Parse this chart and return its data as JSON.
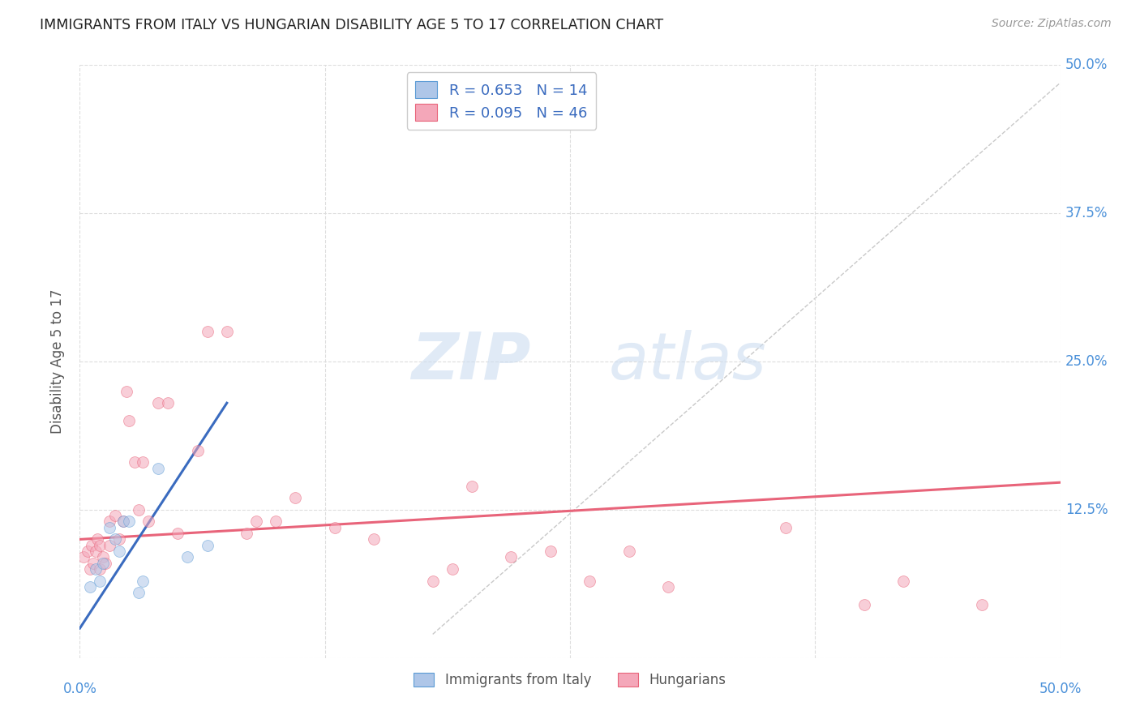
{
  "title": "IMMIGRANTS FROM ITALY VS HUNGARIAN DISABILITY AGE 5 TO 17 CORRELATION CHART",
  "source": "Source: ZipAtlas.com",
  "ylabel": "Disability Age 5 to 17",
  "xlim": [
    0.0,
    0.5
  ],
  "ylim": [
    0.0,
    0.5
  ],
  "xtick_vals": [
    0.0,
    0.125,
    0.25,
    0.375,
    0.5
  ],
  "xtick_labels": [
    "0.0%",
    "",
    "",
    "",
    "50.0%"
  ],
  "ytick_vals": [
    0.0,
    0.125,
    0.25,
    0.375,
    0.5
  ],
  "ytick_labels_right": [
    "",
    "12.5%",
    "25.0%",
    "37.5%",
    "50.0%"
  ],
  "legend_entries": [
    {
      "label": "Immigrants from Italy",
      "color": "#aec6e8",
      "edge": "#5b9bd5",
      "R": "0.653",
      "N": "14"
    },
    {
      "label": "Hungarians",
      "color": "#f4a7b9",
      "edge": "#e8647a",
      "R": "0.095",
      "N": "46"
    }
  ],
  "blue_scatter_x": [
    0.005,
    0.008,
    0.01,
    0.012,
    0.015,
    0.018,
    0.02,
    0.022,
    0.025,
    0.03,
    0.032,
    0.04,
    0.055,
    0.065
  ],
  "blue_scatter_y": [
    0.06,
    0.075,
    0.065,
    0.08,
    0.11,
    0.1,
    0.09,
    0.115,
    0.115,
    0.055,
    0.065,
    0.16,
    0.085,
    0.095
  ],
  "pink_scatter_x": [
    0.002,
    0.004,
    0.005,
    0.006,
    0.007,
    0.008,
    0.009,
    0.01,
    0.01,
    0.012,
    0.013,
    0.015,
    0.015,
    0.018,
    0.02,
    0.022,
    0.024,
    0.025,
    0.028,
    0.03,
    0.032,
    0.035,
    0.04,
    0.045,
    0.05,
    0.06,
    0.065,
    0.075,
    0.085,
    0.09,
    0.1,
    0.11,
    0.13,
    0.15,
    0.18,
    0.19,
    0.2,
    0.22,
    0.24,
    0.26,
    0.28,
    0.3,
    0.36,
    0.4,
    0.42,
    0.46
  ],
  "pink_scatter_y": [
    0.085,
    0.09,
    0.075,
    0.095,
    0.08,
    0.09,
    0.1,
    0.075,
    0.095,
    0.085,
    0.08,
    0.115,
    0.095,
    0.12,
    0.1,
    0.115,
    0.225,
    0.2,
    0.165,
    0.125,
    0.165,
    0.115,
    0.215,
    0.215,
    0.105,
    0.175,
    0.275,
    0.275,
    0.105,
    0.115,
    0.115,
    0.135,
    0.11,
    0.1,
    0.065,
    0.075,
    0.145,
    0.085,
    0.09,
    0.065,
    0.09,
    0.06,
    0.11,
    0.045,
    0.065,
    0.045
  ],
  "blue_line_x": [
    0.0,
    0.075
  ],
  "blue_line_y": [
    0.025,
    0.215
  ],
  "pink_line_x": [
    0.0,
    0.5
  ],
  "pink_line_y": [
    0.1,
    0.148
  ],
  "dash_line_x": [
    0.18,
    0.5
  ],
  "dash_line_y": [
    0.02,
    0.485
  ],
  "watermark_zip": "ZIP",
  "watermark_atlas": "atlas",
  "background_color": "#ffffff",
  "grid_color": "#dddddd",
  "title_color": "#222222",
  "axis_label_color": "#4a90d9",
  "scatter_alpha": 0.55,
  "scatter_size": 100
}
